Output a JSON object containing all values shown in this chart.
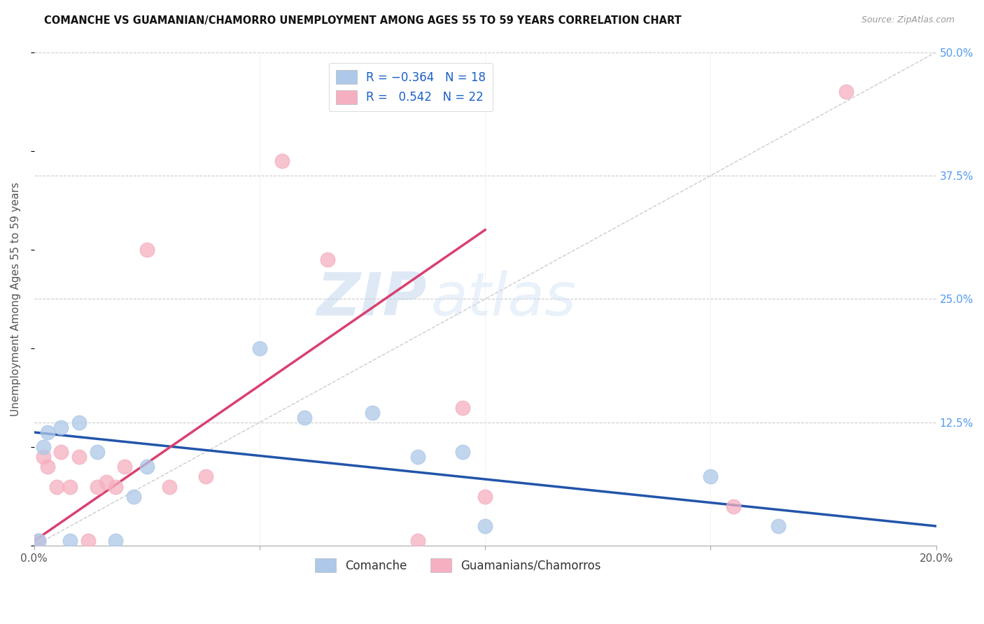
{
  "title": "COMANCHE VS GUAMANIAN/CHAMORRO UNEMPLOYMENT AMONG AGES 55 TO 59 YEARS CORRELATION CHART",
  "source": "Source: ZipAtlas.com",
  "ylabel": "Unemployment Among Ages 55 to 59 years",
  "xlim": [
    0.0,
    0.2
  ],
  "ylim": [
    0.0,
    0.5
  ],
  "xticks": [
    0.0,
    0.05,
    0.1,
    0.15,
    0.2
  ],
  "xticklabels": [
    "0.0%",
    "",
    "",
    "",
    "20.0%"
  ],
  "yticks": [
    0.0,
    0.125,
    0.25,
    0.375,
    0.5
  ],
  "yticklabels_right": [
    "",
    "12.5%",
    "25.0%",
    "37.5%",
    "50.0%"
  ],
  "comanche_R": -0.364,
  "comanche_N": 18,
  "guamanian_R": 0.542,
  "guamanian_N": 22,
  "comanche_color": "#adc8e8",
  "guamanian_color": "#f5afc0",
  "comanche_line_color": "#2255aa",
  "guamanian_line_color": "#d94070",
  "background_color": "#ffffff",
  "grid_color": "#cccccc",
  "watermark_zip": "ZIP",
  "watermark_atlas": "atlas",
  "comanche_x": [
    0.001,
    0.002,
    0.003,
    0.006,
    0.008,
    0.01,
    0.014,
    0.018,
    0.022,
    0.025,
    0.05,
    0.06,
    0.075,
    0.085,
    0.095,
    0.1,
    0.15,
    0.165
  ],
  "comanche_y": [
    0.005,
    0.1,
    0.115,
    0.12,
    0.005,
    0.125,
    0.095,
    0.005,
    0.05,
    0.08,
    0.2,
    0.13,
    0.135,
    0.09,
    0.095,
    0.02,
    0.07,
    0.02
  ],
  "guamanian_x": [
    0.001,
    0.002,
    0.003,
    0.005,
    0.006,
    0.008,
    0.01,
    0.012,
    0.014,
    0.016,
    0.018,
    0.02,
    0.025,
    0.03,
    0.038,
    0.055,
    0.065,
    0.085,
    0.095,
    0.1,
    0.155,
    0.18
  ],
  "guamanian_y": [
    0.005,
    0.09,
    0.08,
    0.06,
    0.095,
    0.06,
    0.09,
    0.005,
    0.06,
    0.065,
    0.06,
    0.08,
    0.3,
    0.06,
    0.07,
    0.39,
    0.29,
    0.005,
    0.14,
    0.05,
    0.04,
    0.46
  ],
  "blue_trend_x0": 0.0,
  "blue_trend_y0": 0.115,
  "blue_trend_x1": 0.2,
  "blue_trend_y1": 0.02,
  "pink_trend_x0": 0.0,
  "pink_trend_y0": 0.005,
  "pink_trend_x1": 0.1,
  "pink_trend_y1": 0.32
}
